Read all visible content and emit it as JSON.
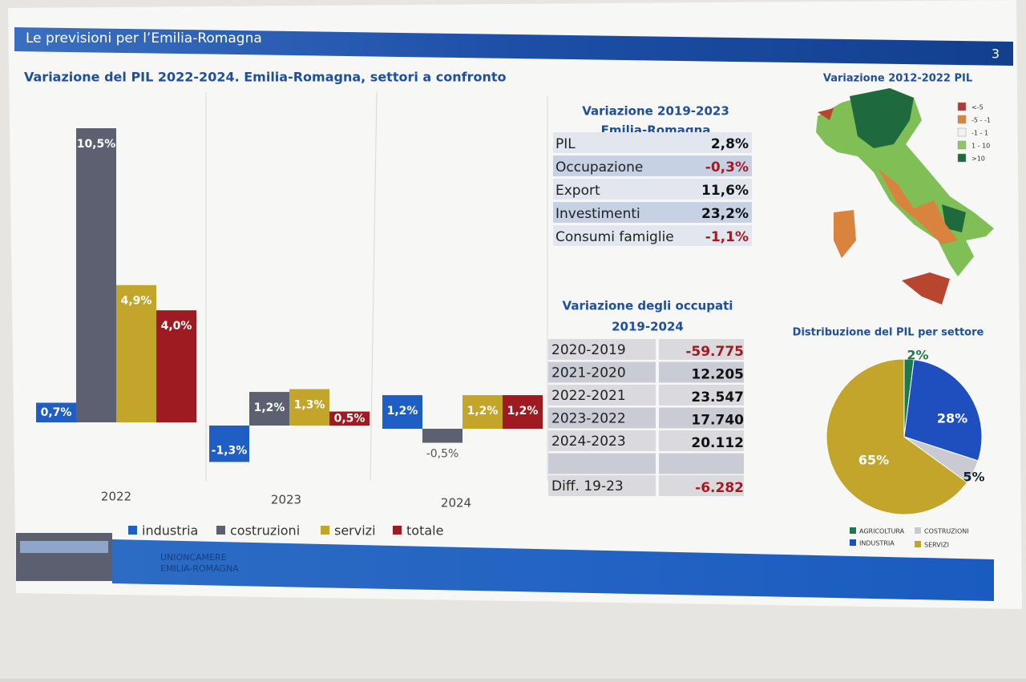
{
  "header": {
    "title": "Le previsioni per l’Emilia-Romagna",
    "page": "3",
    "subtitle": "Variazione del PIL 2022-2024. Emilia-Romagna, settori a confronto"
  },
  "chart_data": [
    {
      "type": "bar",
      "categories": [
        "2022",
        "2023",
        "2024"
      ],
      "series": [
        {
          "name": "industria",
          "color": "#1f5fc4",
          "values": [
            0.7,
            -1.3,
            1.2
          ],
          "value_labels": [
            "0,7%",
            "-1,3%",
            "1,2%"
          ]
        },
        {
          "name": "costruzioni",
          "color": "#5d6070",
          "values": [
            10.5,
            1.2,
            -0.5
          ],
          "value_labels": [
            "10,5%",
            "1,2%",
            "-0,5%"
          ]
        },
        {
          "name": "servizi",
          "color": "#c4a52b",
          "values": [
            4.9,
            1.3,
            1.2
          ],
          "value_labels": [
            "4,9%",
            "1,3%",
            "1,2%"
          ]
        },
        {
          "name": "totale",
          "color": "#9e1b22",
          "values": [
            4.0,
            0.5,
            1.2
          ],
          "value_labels": [
            "4,0%",
            "0,5%",
            "1,2%"
          ]
        }
      ]
    },
    {
      "type": "pie",
      "title": "Distribuzione del PIL per settore",
      "categories": [
        "AGRICOLTURA",
        "INDUSTRIA",
        "COSTRUZIONI",
        "SERVIZI"
      ],
      "values": [
        2,
        28,
        5,
        65
      ],
      "value_labels": [
        "2%",
        "28%",
        "5%",
        "65%"
      ],
      "colors": [
        "#1e7a4e",
        "#1f4fbf",
        "#c9cad2",
        "#c4a52b"
      ]
    }
  ],
  "table1": {
    "title": [
      "Variazione 2019-2023",
      "Emilia-Romagna"
    ],
    "rows": [
      [
        "PIL",
        "2,8%"
      ],
      [
        "Occupazione",
        "-0,3%"
      ],
      [
        "Export",
        "11,6%"
      ],
      [
        "Investimenti",
        "23,2%"
      ],
      [
        "Consumi famiglie",
        "-1,1%"
      ]
    ]
  },
  "table2": {
    "title": [
      "Variazione degli occupati",
      "2019-2024"
    ],
    "rows": [
      [
        "2020-2019",
        "-59.775"
      ],
      [
        "2021-2020",
        "12.205"
      ],
      [
        "2022-2021",
        "23.547"
      ],
      [
        "2023-2022",
        "17.740"
      ],
      [
        "2024-2023",
        "20.112"
      ]
    ],
    "total": [
      "Diff. 19-23",
      "-6.282"
    ]
  },
  "map": {
    "title": "Variazione  2012-2022 PIL",
    "legend": [
      "<-5",
      "-5 - -1",
      "-1 - 1",
      "1 - 10",
      ">10"
    ]
  },
  "footer": {
    "lines": [
      "UNIONCAMERE",
      "EMILIA-ROMAGNA"
    ]
  }
}
